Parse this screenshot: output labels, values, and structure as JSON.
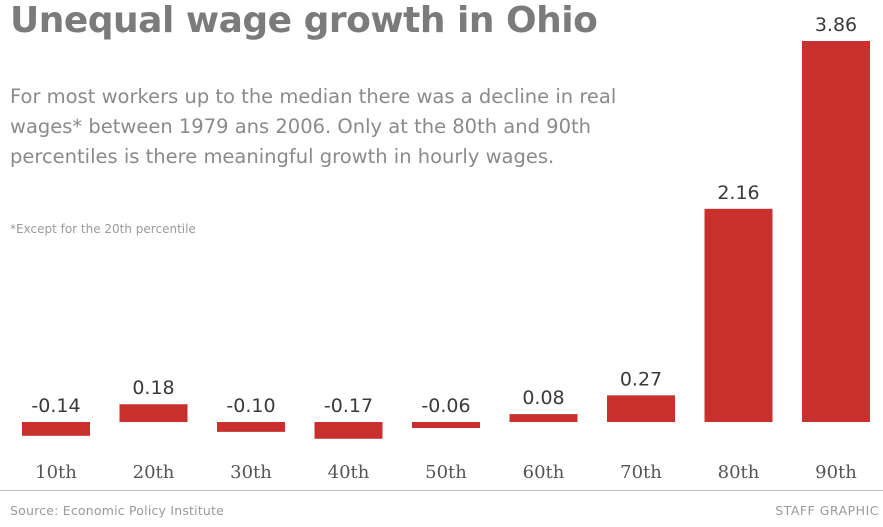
{
  "header": {
    "title": "Unequal wage growth in Ohio",
    "subtitle": "For most workers up to the median there was a decline in real wages* between 1979 ans 2006. Only at the 80th and 90th percentiles is there meaningful growth in hourly wages.",
    "footnote": "*Except for the 20th percentile"
  },
  "footer": {
    "source": "Source: Economic Policy Institute",
    "credit": "STAFF GRAPHIC"
  },
  "colors": {
    "bar": "#c8302e",
    "title": "#7b7b7b"
  },
  "chart_data": {
    "type": "bar",
    "title": "Unequal wage growth in Ohio",
    "xlabel": "",
    "ylabel": "",
    "categories": [
      "10th",
      "20th",
      "30th",
      "40th",
      "50th",
      "60th",
      "70th",
      "80th",
      "90th"
    ],
    "values": [
      -0.14,
      0.18,
      -0.1,
      -0.17,
      -0.06,
      0.08,
      0.27,
      2.16,
      3.86
    ],
    "data_labels": [
      "-0.14",
      "0.18",
      "-0.10",
      "-0.17",
      "-0.06",
      "0.08",
      "0.27",
      "2.16",
      "3.86"
    ],
    "ylim": [
      -0.2,
      3.86
    ],
    "grid": false,
    "legend": "none"
  }
}
